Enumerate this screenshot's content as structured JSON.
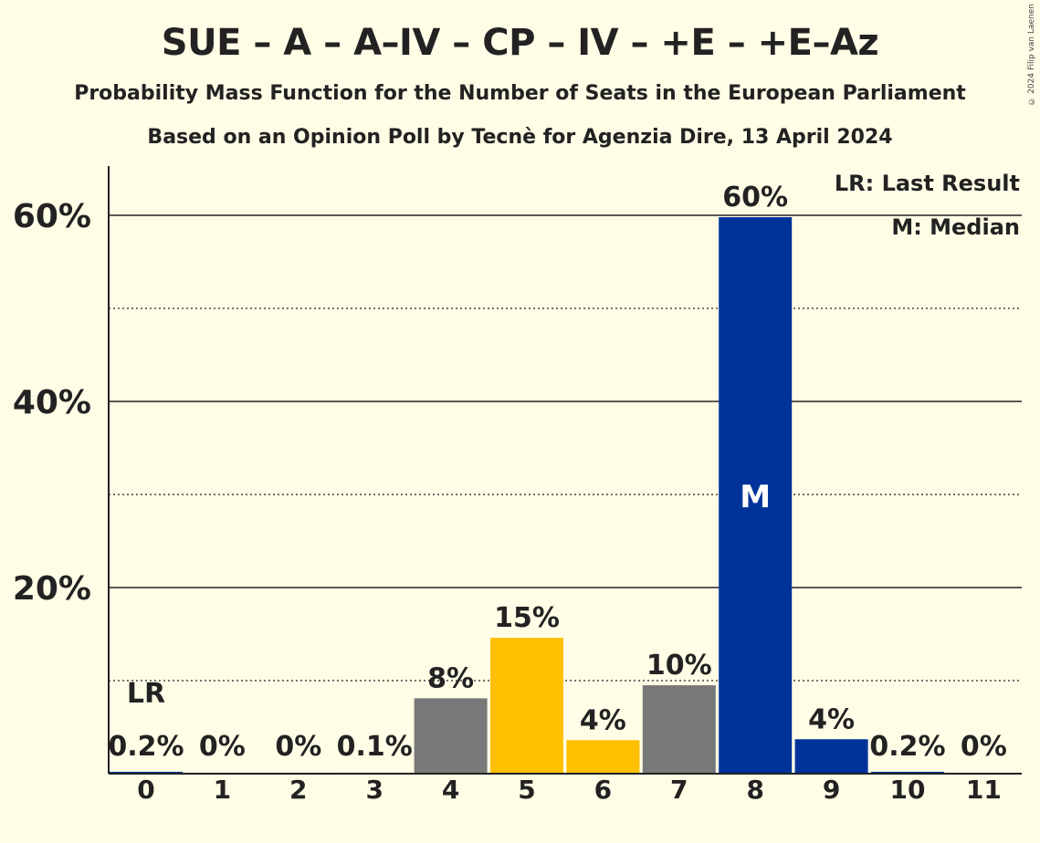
{
  "title": "SUE – A – A–IV – CP – IV – +E – +E–Az",
  "subtitle": "Probability Mass Function for the Number of Seats in the European Parliament",
  "subtitle2": "Based on an Opinion Poll by Tecnè for Agenzia Dire, 13 April 2024",
  "copyright": "© 2024 Filip van Laenen",
  "legend": {
    "last_result": "LR: Last Result",
    "median": "M: Median"
  },
  "colors": {
    "background": "#FFFDE6",
    "blue": "#003399",
    "gold": "#FFC000",
    "grey": "#787878"
  },
  "chart_data": {
    "type": "bar",
    "categories": [
      "0",
      "1",
      "2",
      "3",
      "4",
      "5",
      "6",
      "7",
      "8",
      "9",
      "10",
      "11"
    ],
    "values": [
      0.2,
      0,
      0,
      0.1,
      8.1,
      14.6,
      3.6,
      9.5,
      59.8,
      3.7,
      0.2,
      0
    ],
    "labels": [
      "0.2%",
      "0%",
      "0%",
      "0.1%",
      "8%",
      "15%",
      "4%",
      "10%",
      "60%",
      "4%",
      "0.2%",
      "0%"
    ],
    "colors": [
      "blue",
      "blue",
      "blue",
      "blue",
      "grey",
      "gold",
      "gold",
      "grey",
      "blue",
      "blue",
      "blue",
      "blue"
    ],
    "ylim": [
      0,
      65
    ],
    "yticks": [
      20,
      40,
      60
    ],
    "ytick_labels": [
      "20%",
      "40%",
      "60%"
    ],
    "minor_gridlines": [
      10,
      30,
      50
    ],
    "last_result_index": 0,
    "last_result_label": "LR",
    "median_index": 8,
    "median_label": "M",
    "xlabel": "",
    "ylabel": "",
    "legend_position": "top-right"
  }
}
